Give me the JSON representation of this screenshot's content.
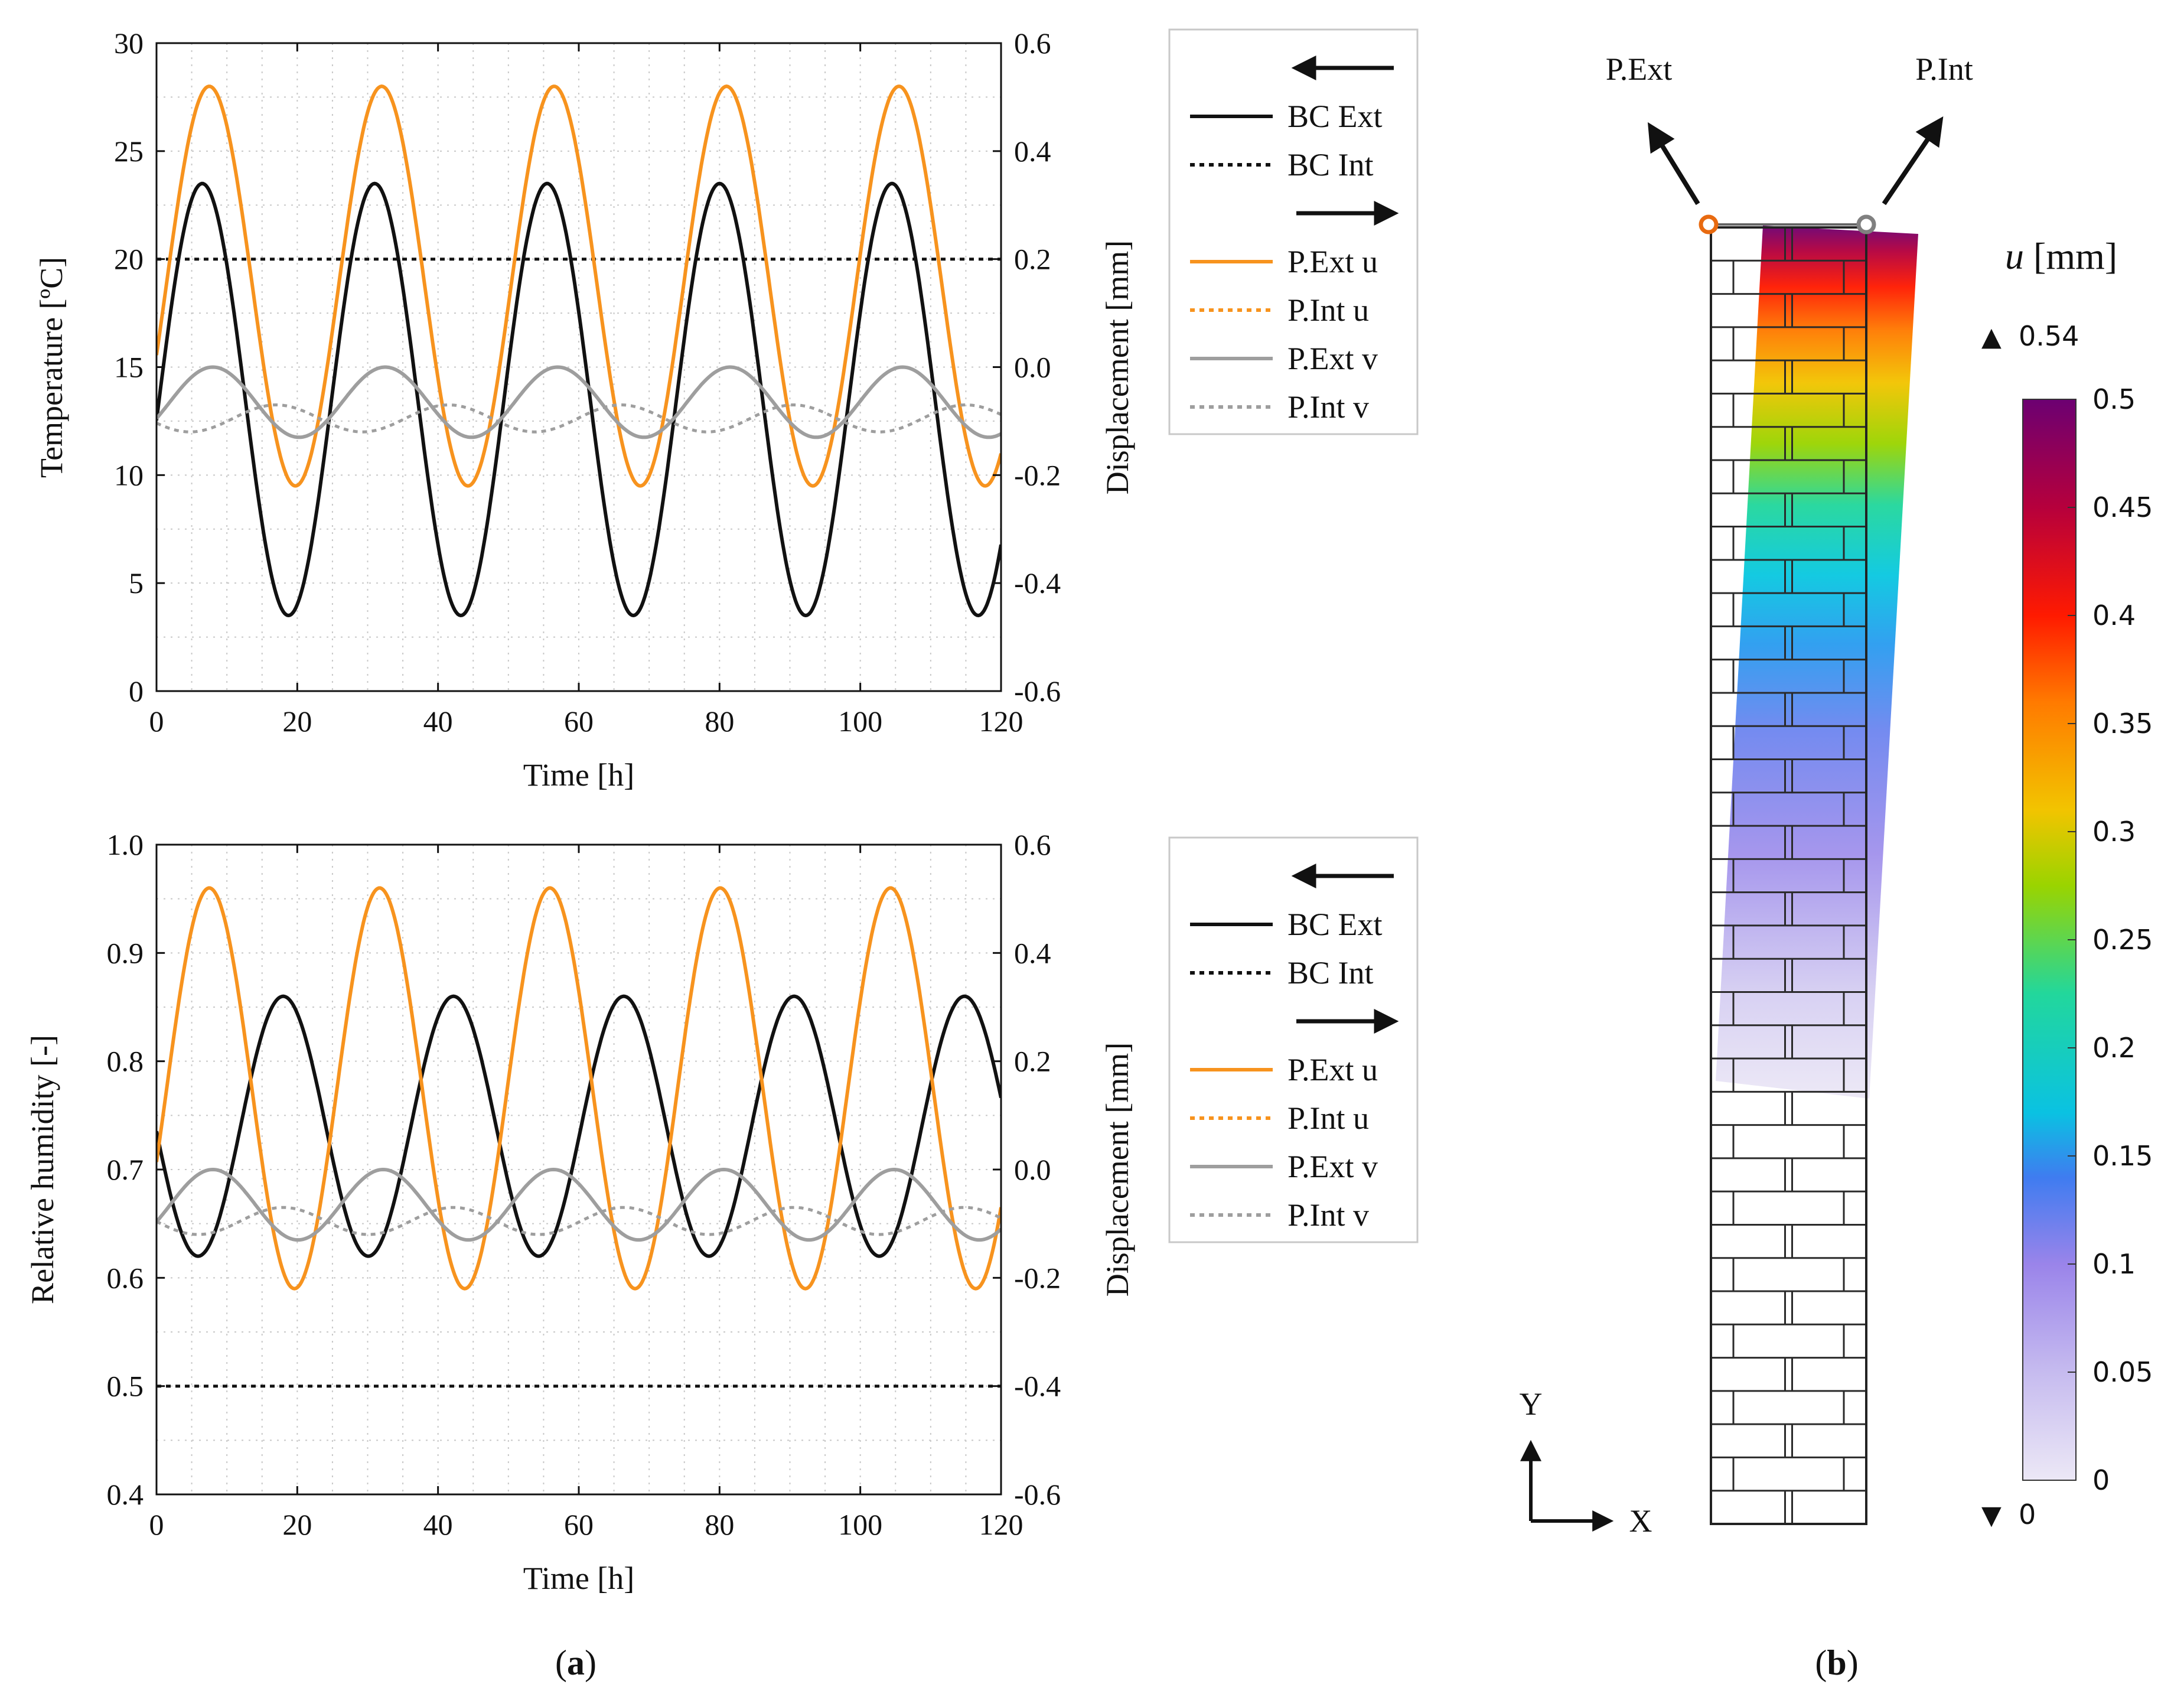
{
  "chart_data": [
    {
      "id": "top",
      "type": "line",
      "xlabel": "Time [h]",
      "ylabel": "Temperature [ºC]",
      "y2label": "Displacement [mm]",
      "xlim": [
        0,
        120
      ],
      "ylim": [
        0,
        30
      ],
      "y2lim": [
        -0.6,
        0.6
      ],
      "x_ticks": [
        "0",
        "20",
        "40",
        "60",
        "80",
        "100",
        "120"
      ],
      "y_ticks": [
        "0",
        "5",
        "10",
        "15",
        "20",
        "25",
        "30"
      ],
      "y2_ticks": [
        "-0.6",
        "-0.4",
        "-0.2",
        "0.0",
        "0.2",
        "0.4",
        "0.6"
      ],
      "grid": true,
      "legend_position": "right",
      "legend_left_group_marker": "arrow-left",
      "legend_right_group_marker": "arrow-right",
      "series": [
        {
          "name": "BC Ext",
          "axis": "left",
          "color": "#111111",
          "dash": "solid",
          "mean": 13.5,
          "amp": 10,
          "period": 24.5,
          "peak": 6.5
        },
        {
          "name": "BC Int",
          "axis": "left",
          "color": "#111111",
          "dash": "dotted",
          "mean": 20,
          "amp": 0,
          "period": 24.5,
          "peak": 0
        },
        {
          "name": "P.Ext u",
          "axis": "right",
          "color": "#f7931e",
          "dash": "solid",
          "mean": 0.15,
          "amp": 0.37,
          "period": 24.5,
          "peak": 7.5
        },
        {
          "name": "P.Int  u",
          "axis": "right",
          "color": "#f7931e",
          "dash": "dotted",
          "mean": 0.15,
          "amp": 0.37,
          "period": 24.5,
          "peak": 7.5
        },
        {
          "name": "P.Ext v",
          "axis": "right",
          "color": "#9e9e9e",
          "dash": "solid",
          "mean": -0.065,
          "amp": 0.065,
          "period": 24.5,
          "peak": 8
        },
        {
          "name": "P.Int  v",
          "axis": "right",
          "color": "#9e9e9e",
          "dash": "dotted",
          "mean": -0.095,
          "amp": 0.025,
          "period": 24.5,
          "peak": 17
        }
      ]
    },
    {
      "id": "bottom",
      "type": "line",
      "xlabel": "Time [h]",
      "ylabel": "Relative humidity [-]",
      "y2label": "Displacement [mm]",
      "xlim": [
        0,
        120
      ],
      "ylim": [
        0.4,
        1.0
      ],
      "y2lim": [
        -0.6,
        0.6
      ],
      "x_ticks": [
        "0",
        "20",
        "40",
        "60",
        "80",
        "100",
        "120"
      ],
      "y_ticks": [
        "0.4",
        "0.5",
        "0.6",
        "0.7",
        "0.8",
        "0.9",
        "1.0"
      ],
      "y2_ticks": [
        "-0.6",
        "-0.4",
        "-0.2",
        "0.0",
        "0.2",
        "0.4",
        "0.6"
      ],
      "grid": true,
      "legend_position": "right",
      "legend_left_group_marker": "arrow-left",
      "legend_right_group_marker": "arrow-right",
      "series": [
        {
          "name": "BC Ext",
          "axis": "left",
          "color": "#111111",
          "dash": "solid",
          "mean": 0.74,
          "amp": 0.12,
          "period": 24.2,
          "peak": 18
        },
        {
          "name": "BC Int",
          "axis": "left",
          "color": "#111111",
          "dash": "dotted",
          "mean": 0.5,
          "amp": 0,
          "period": 24.2,
          "peak": 0
        },
        {
          "name": "P.Ext u",
          "axis": "right",
          "color": "#f7931e",
          "dash": "solid",
          "mean": 0.15,
          "amp": 0.37,
          "period": 24.2,
          "peak": 7.5
        },
        {
          "name": "P.Int  u",
          "axis": "right",
          "color": "#f7931e",
          "dash": "dotted",
          "mean": 0.15,
          "amp": 0.37,
          "period": 24.2,
          "peak": 7.5
        },
        {
          "name": "P.Ext v",
          "axis": "right",
          "color": "#9e9e9e",
          "dash": "solid",
          "mean": -0.065,
          "amp": 0.065,
          "period": 24.2,
          "peak": 8
        },
        {
          "name": "P.Int  v",
          "axis": "right",
          "color": "#9e9e9e",
          "dash": "dotted",
          "mean": -0.095,
          "amp": 0.025,
          "period": 24.2,
          "peak": 18
        }
      ]
    },
    {
      "id": "colorbar",
      "type": "heatmap",
      "title": "u [mm]",
      "title_var": "u",
      "title_unit": "[mm]",
      "max_label": "0.54",
      "min_label": "0",
      "range": [
        0,
        0.5
      ],
      "ticks": [
        "0",
        "0.05",
        "0.1",
        "0.15",
        "0.2",
        "0.25",
        "0.3",
        "0.35",
        "0.4",
        "0.45",
        "0.5"
      ],
      "colormap": [
        "#ece8f6",
        "#9a84ea",
        "#3f7cf0",
        "#0ac2e2",
        "#22d79c",
        "#9ad400",
        "#f2c400",
        "#ff7a00",
        "#ff1a00",
        "#b6003c",
        "#6c0072"
      ]
    }
  ],
  "diagram": {
    "point_ext": "P.Ext",
    "point_int": "P.Int",
    "point_ext_color": "#e86a10",
    "point_int_color": "#808080",
    "axis_y": "Y",
    "axis_x": "X"
  },
  "labels": {
    "panel_a": "(a)",
    "panel_b": "(b)"
  },
  "panel_letters": {
    "a": "a",
    "b": "b"
  }
}
